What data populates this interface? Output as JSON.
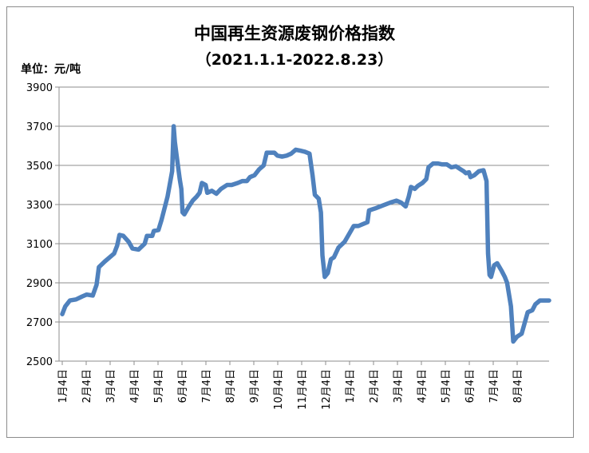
{
  "chart_data": {
    "type": "line",
    "title": "中国再生资源废钢价格指数",
    "subtitle": "（2021.1.1-2022.8.23）",
    "ylabel": "单位：元/吨",
    "xlabel": "",
    "ylim": [
      2500,
      3900
    ],
    "yticks": [
      2500,
      2700,
      2900,
      3100,
      3300,
      3500,
      3700,
      3900
    ],
    "grid": true,
    "legend": "none",
    "x_tick_labels": [
      "1月4日",
      "2月4日",
      "3月4日",
      "4月4日",
      "5月4日",
      "6月4日",
      "7月4日",
      "8月4日",
      "9月4日",
      "10月4日",
      "11月4日",
      "12月4日",
      "1月4日",
      "2月4日",
      "3月4日",
      "4月4日",
      "5月4日",
      "6月4日",
      "7月4日",
      "8月4日"
    ],
    "series": [
      {
        "color": "#4f81bd",
        "points": [
          [
            0.0,
            2740
          ],
          [
            0.2,
            2780
          ],
          [
            0.5,
            2810
          ],
          [
            0.9,
            2815
          ],
          [
            1.3,
            2830
          ],
          [
            1.6,
            2840
          ],
          [
            2.0,
            2835
          ],
          [
            2.25,
            2890
          ],
          [
            2.4,
            2980
          ],
          [
            2.8,
            3010
          ],
          [
            3.4,
            3050
          ],
          [
            3.6,
            3090
          ],
          [
            3.75,
            3145
          ],
          [
            4.0,
            3140
          ],
          [
            4.35,
            3110
          ],
          [
            4.6,
            3075
          ],
          [
            5.0,
            3070
          ],
          [
            5.4,
            3100
          ],
          [
            5.55,
            3140
          ],
          [
            5.9,
            3140
          ],
          [
            6.0,
            3165
          ],
          [
            6.3,
            3170
          ],
          [
            6.5,
            3220
          ],
          [
            6.9,
            3340
          ],
          [
            7.2,
            3470
          ],
          [
            7.3,
            3700
          ],
          [
            7.38,
            3620
          ],
          [
            7.48,
            3560
          ],
          [
            7.7,
            3430
          ],
          [
            7.8,
            3380
          ],
          [
            7.88,
            3260
          ],
          [
            8.0,
            3250
          ],
          [
            8.3,
            3290
          ],
          [
            8.55,
            3320
          ],
          [
            8.8,
            3340
          ],
          [
            9.0,
            3360
          ],
          [
            9.15,
            3410
          ],
          [
            9.4,
            3400
          ],
          [
            9.5,
            3360
          ],
          [
            9.8,
            3370
          ],
          [
            10.1,
            3355
          ],
          [
            10.4,
            3380
          ],
          [
            10.8,
            3400
          ],
          [
            11.1,
            3400
          ],
          [
            11.5,
            3410
          ],
          [
            11.8,
            3420
          ],
          [
            12.1,
            3420
          ],
          [
            12.3,
            3440
          ],
          [
            12.6,
            3450
          ],
          [
            12.9,
            3480
          ],
          [
            13.2,
            3500
          ],
          [
            13.4,
            3565
          ],
          [
            13.9,
            3565
          ],
          [
            14.1,
            3550
          ],
          [
            14.4,
            3545
          ],
          [
            14.7,
            3550
          ],
          [
            15.0,
            3560
          ],
          [
            15.3,
            3580
          ],
          [
            15.6,
            3575
          ],
          [
            15.9,
            3570
          ],
          [
            16.2,
            3560
          ],
          [
            16.4,
            3450
          ],
          [
            16.55,
            3350
          ],
          [
            16.8,
            3330
          ],
          [
            16.95,
            3260
          ],
          [
            17.05,
            3040
          ],
          [
            17.2,
            2930
          ],
          [
            17.4,
            2950
          ],
          [
            17.6,
            3020
          ],
          [
            17.8,
            3030
          ],
          [
            18.1,
            3080
          ],
          [
            18.5,
            3110
          ],
          [
            18.8,
            3150
          ],
          [
            19.1,
            3190
          ],
          [
            19.4,
            3190
          ],
          [
            19.7,
            3200
          ],
          [
            20.0,
            3210
          ],
          [
            20.1,
            3270
          ],
          [
            20.5,
            3280
          ],
          [
            21.0,
            3295
          ],
          [
            21.5,
            3310
          ],
          [
            21.9,
            3320
          ],
          [
            22.2,
            3310
          ],
          [
            22.5,
            3290
          ],
          [
            22.7,
            3340
          ],
          [
            22.85,
            3390
          ],
          [
            23.1,
            3380
          ],
          [
            23.3,
            3395
          ],
          [
            23.6,
            3410
          ],
          [
            23.85,
            3430
          ],
          [
            24.0,
            3490
          ],
          [
            24.3,
            3510
          ],
          [
            24.6,
            3510
          ],
          [
            24.9,
            3505
          ],
          [
            25.2,
            3505
          ],
          [
            25.5,
            3490
          ],
          [
            25.8,
            3495
          ],
          [
            26.1,
            3480
          ],
          [
            26.3,
            3470
          ],
          [
            26.45,
            3460
          ],
          [
            26.65,
            3465
          ],
          [
            26.75,
            3440
          ],
          [
            27.0,
            3450
          ],
          [
            27.3,
            3470
          ],
          [
            27.6,
            3475
          ],
          [
            27.8,
            3420
          ],
          [
            27.9,
            3050
          ],
          [
            28.0,
            2940
          ],
          [
            28.1,
            2930
          ],
          [
            28.3,
            2990
          ],
          [
            28.5,
            3000
          ],
          [
            28.8,
            2960
          ],
          [
            29.0,
            2930
          ],
          [
            29.15,
            2900
          ],
          [
            29.4,
            2780
          ],
          [
            29.55,
            2600
          ],
          [
            29.8,
            2625
          ],
          [
            30.1,
            2640
          ],
          [
            30.5,
            2750
          ],
          [
            30.8,
            2760
          ],
          [
            31.0,
            2790
          ],
          [
            31.3,
            2810
          ],
          [
            31.6,
            2810
          ],
          [
            31.9,
            2810
          ]
        ]
      }
    ]
  }
}
